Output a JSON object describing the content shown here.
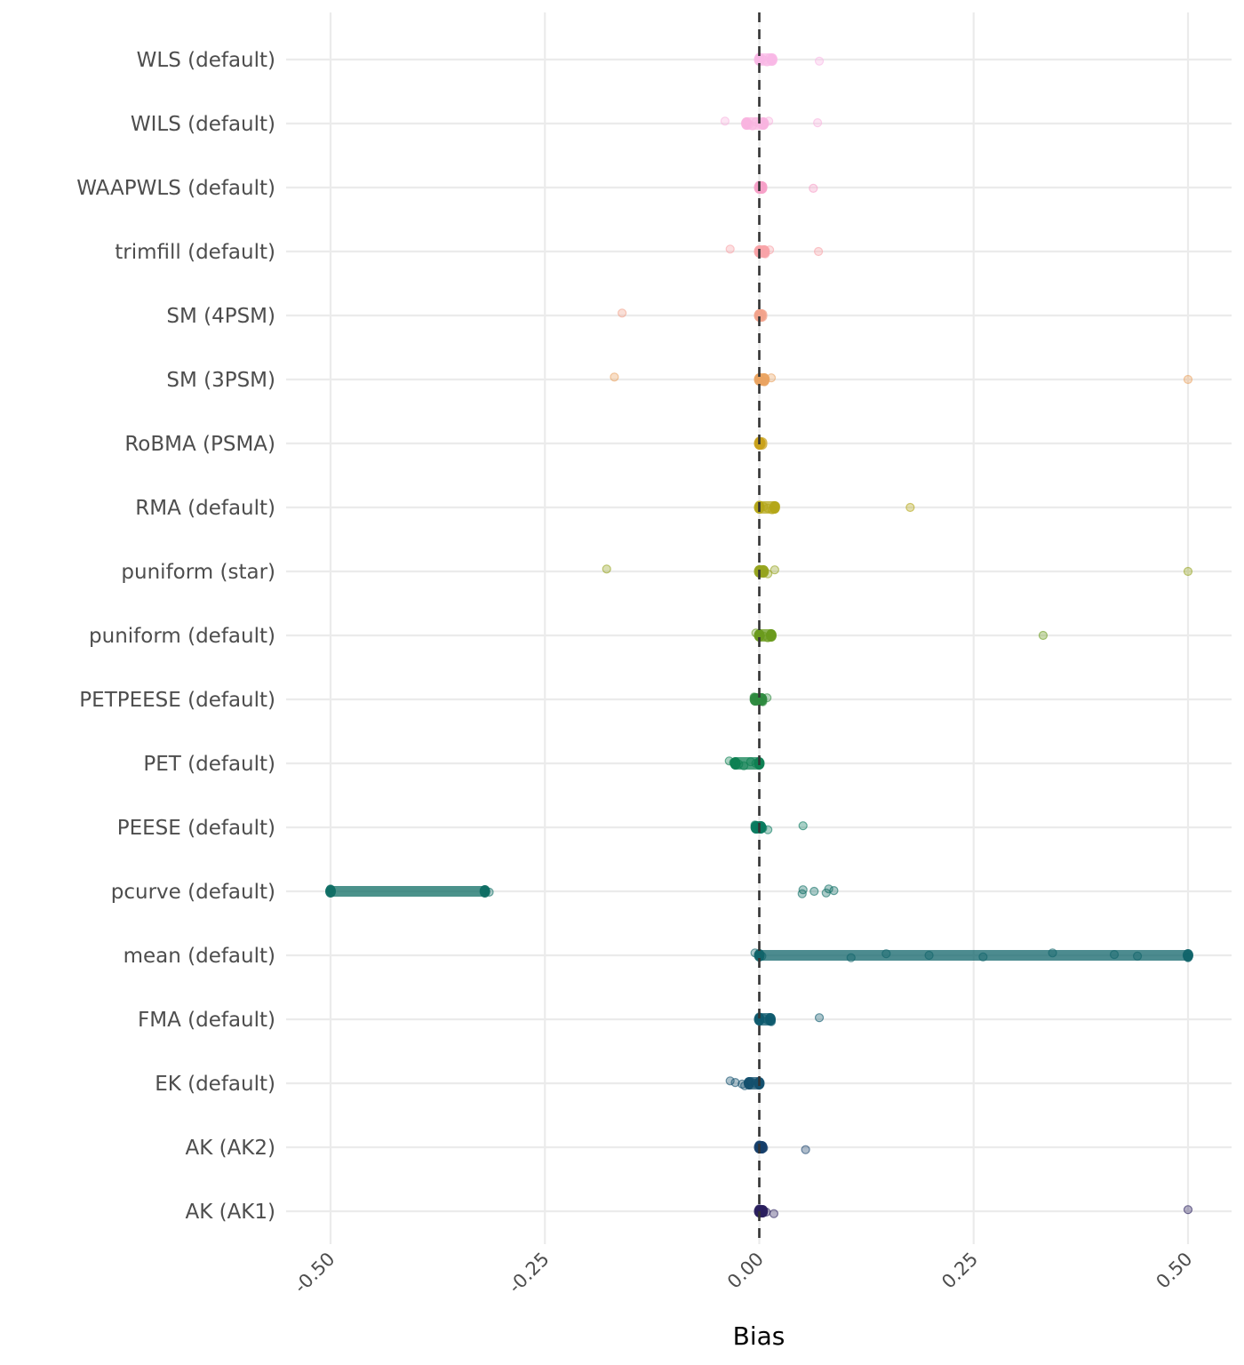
{
  "chart_data": {
    "type": "scatter",
    "subtype": "jittered strip plot with range bars per method",
    "title": "",
    "xlabel": "Bias",
    "ylabel": "",
    "xlim": [
      -0.5,
      0.5
    ],
    "xticks": [
      -0.5,
      -0.25,
      0.0,
      0.25,
      0.5
    ],
    "xtick_labels": [
      "-0.50",
      "-0.25",
      "0.00",
      "0.25",
      "0.50"
    ],
    "xtick_rotation_deg": 45,
    "grid": true,
    "reference_line": {
      "x": 0.0,
      "style": "dashed",
      "color": "#333333"
    },
    "legend": "none",
    "categories": [
      "WLS (default)",
      "WILS (default)",
      "WAAPWLS (default)",
      "trimfill (default)",
      "SM (4PSM)",
      "SM (3PSM)",
      "RoBMA (PSMA)",
      "RMA (default)",
      "puniform (star)",
      "puniform (default)",
      "PETPEESE (default)",
      "PET (default)",
      "PEESE (default)",
      "pcurve (default)",
      "mean (default)",
      "FMA (default)",
      "EK (default)",
      "AK (AK2)",
      "AK (AK1)"
    ],
    "series": [
      {
        "name": "WLS (default)",
        "color": "#f9b8e6",
        "cluster": [
          0.0,
          0.015
        ],
        "points": [
          0.0,
          0.003,
          0.006,
          0.009,
          0.012,
          0.014,
          0.07
        ]
      },
      {
        "name": "WILS (default)",
        "color": "#f9b4df",
        "cluster": [
          -0.015,
          0.005
        ],
        "points": [
          -0.04,
          -0.015,
          -0.012,
          -0.008,
          -0.004,
          0.0,
          0.004,
          0.011,
          0.068
        ]
      },
      {
        "name": "WAAPWLS (default)",
        "color": "#f7a0c8",
        "cluster": [
          0.0,
          0.003
        ],
        "points": [
          0.0,
          0.002,
          0.063
        ]
      },
      {
        "name": "trimfill (default)",
        "color": "#f9a3a8",
        "cluster": [
          0.0,
          0.006
        ],
        "points": [
          -0.034,
          0.0,
          0.003,
          0.007,
          0.012,
          0.069
        ]
      },
      {
        "name": "SM (4PSM)",
        "color": "#f2a38c",
        "cluster": [
          0.0,
          0.002
        ],
        "points": [
          -0.16,
          0.0,
          0.001
        ]
      },
      {
        "name": "SM (3PSM)",
        "color": "#eaa462",
        "cluster": [
          0.0,
          0.006
        ],
        "points": [
          -0.169,
          0.0,
          0.003,
          0.006,
          0.014,
          0.5
        ]
      },
      {
        "name": "RoBMA (PSMA)",
        "color": "#c9a21d",
        "cluster": [
          0.0,
          0.001
        ],
        "points": [
          0.0,
          0.001
        ]
      },
      {
        "name": "RMA (default)",
        "color": "#b4a618",
        "cluster": [
          0.0,
          0.018
        ],
        "points": [
          0.0,
          0.005,
          0.01,
          0.015,
          0.019,
          0.176
        ]
      },
      {
        "name": "puniform (star)",
        "color": "#96a41f",
        "cluster": [
          0.0,
          0.005
        ],
        "points": [
          -0.178,
          0.0,
          0.004,
          0.01,
          0.018,
          0.5
        ]
      },
      {
        "name": "puniform (default)",
        "color": "#6a9b1e",
        "cluster": [
          0.0,
          0.014
        ],
        "points": [
          -0.004,
          0.0,
          0.005,
          0.01,
          0.014,
          0.331
        ]
      },
      {
        "name": "PETPEESE (default)",
        "color": "#2e8a3f",
        "cluster": [
          -0.005,
          0.003
        ],
        "points": [
          -0.006,
          -0.002,
          0.0,
          0.004,
          0.009
        ]
      },
      {
        "name": "PET (default)",
        "color": "#0d8052",
        "cluster": [
          -0.028,
          0.0
        ],
        "points": [
          -0.035,
          -0.03,
          -0.024,
          -0.018,
          -0.01,
          -0.004,
          0.0
        ]
      },
      {
        "name": "PEESE (default)",
        "color": "#0a7a5f",
        "cluster": [
          -0.004,
          0.002
        ],
        "points": [
          -0.005,
          0.0,
          0.004,
          0.01,
          0.051
        ]
      },
      {
        "name": "pcurve (default)",
        "color": "#0f6e64",
        "cluster": [
          -0.5,
          -0.32
        ],
        "points": [
          -0.5,
          -0.32,
          -0.315,
          0.05,
          0.051,
          0.064,
          0.078,
          0.081,
          0.087
        ]
      },
      {
        "name": "mean (default)",
        "color": "#10646a",
        "cluster": [
          0.0,
          0.5
        ],
        "points": [
          -0.005,
          0.0,
          0.003,
          0.107,
          0.148,
          0.198,
          0.261,
          0.342,
          0.414,
          0.441,
          0.5
        ]
      },
      {
        "name": "FMA (default)",
        "color": "#0e5a6e",
        "cluster": [
          0.0,
          0.013
        ],
        "points": [
          0.0,
          0.005,
          0.01,
          0.014,
          0.07
        ]
      },
      {
        "name": "EK (default)",
        "color": "#13506e",
        "cluster": [
          -0.012,
          0.0
        ],
        "points": [
          -0.034,
          -0.028,
          -0.02,
          -0.017,
          -0.01,
          -0.005,
          0.0
        ]
      },
      {
        "name": "AK (AK2)",
        "color": "#163f6b",
        "cluster": [
          0.0,
          0.003
        ],
        "points": [
          0.0,
          0.002,
          0.005,
          0.054
        ]
      },
      {
        "name": "AK (AK1)",
        "color": "#2a1f5e",
        "cluster": [
          0.0,
          0.004
        ],
        "points": [
          0.0,
          0.003,
          0.008,
          0.017,
          0.5
        ]
      }
    ]
  }
}
